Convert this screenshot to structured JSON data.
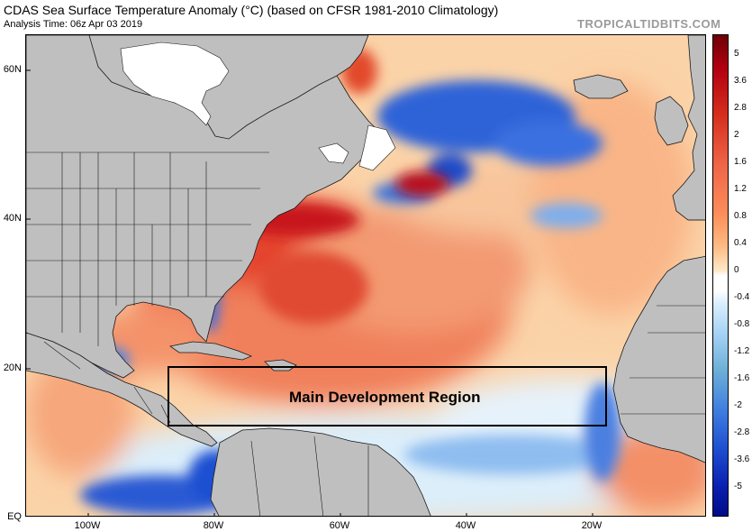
{
  "header": {
    "title": "CDAS Sea Surface Temperature Anomaly (°C) (based on CFSR 1981-2010 Climatology)",
    "subtitle": "Analysis Time: 06z Apr 03 2019",
    "brand": "TROPICALTIDBITS.COM"
  },
  "axes": {
    "lat_labels": [
      "60N",
      "40N",
      "20N",
      "EQ"
    ],
    "lon_labels": [
      "100W",
      "80W",
      "60W",
      "40W",
      "20W"
    ]
  },
  "colorbar": {
    "labels": [
      "5",
      "3.6",
      "2.8",
      "2",
      "1.6",
      "1.2",
      "0.8",
      "0.4",
      "0",
      "-0.4",
      "-0.8",
      "-1.2",
      "-1.6",
      "-2",
      "-2.8",
      "-3.6",
      "-5"
    ]
  },
  "annotation": {
    "region_label": "Main Development Region"
  },
  "colors": {
    "land": "#bfbfbf",
    "border": "#222222",
    "ice": "#ffffff",
    "warm_strong": "#c51a1a",
    "warm": "#f26b4f",
    "warm_light": "#f9b283",
    "warm_pale": "#fde0bd",
    "cool_light": "#bcdcf6",
    "cool": "#6aa0ea",
    "cool_strong": "#1f52d6"
  }
}
